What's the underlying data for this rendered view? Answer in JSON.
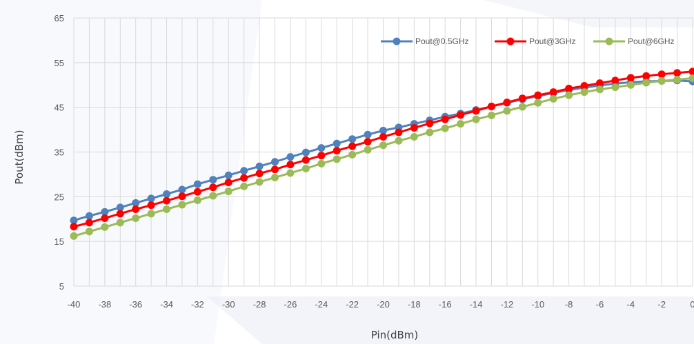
{
  "chart_data": {
    "type": "line",
    "title": "",
    "xlabel": "Pin(dBm)",
    "ylabel": "Pout(dBm)",
    "x": [
      -40,
      -39,
      -38,
      -37,
      -36,
      -35,
      -34,
      -33,
      -32,
      -31,
      -30,
      -29,
      -28,
      -27,
      -26,
      -25,
      -24,
      -23,
      -22,
      -21,
      -20,
      -19,
      -18,
      -17,
      -16,
      -15,
      -14,
      -13,
      -12,
      -11,
      -10,
      -9,
      -8,
      -7,
      -6,
      -5,
      -4,
      -3,
      -2,
      -1,
      0
    ],
    "x_ticks": [
      "-40",
      "-38",
      "-36",
      "-34",
      "-32",
      "-30",
      "-28",
      "-26",
      "-24",
      "-22",
      "-20",
      "-18",
      "-16",
      "-14",
      "-12",
      "-10",
      "-8",
      "-6",
      "-4",
      "-2",
      "0"
    ],
    "y_ticks": [
      "5",
      "15",
      "25",
      "35",
      "45",
      "55",
      "65"
    ],
    "xlim": [
      -40,
      0
    ],
    "ylim": [
      5,
      65
    ],
    "grid": true,
    "legend_position": "top-right",
    "series": [
      {
        "name": "Pout@0.5GHz",
        "color": "#4f81bd",
        "values": [
          19.7,
          20.7,
          21.6,
          22.6,
          23.6,
          24.6,
          25.6,
          26.6,
          27.8,
          28.8,
          29.8,
          30.8,
          31.8,
          32.8,
          33.9,
          34.9,
          35.9,
          36.9,
          37.9,
          38.9,
          39.8,
          40.5,
          41.3,
          42.1,
          42.9,
          43.6,
          44.4,
          45.2,
          46,
          46.8,
          47.5,
          48.2,
          48.9,
          49.4,
          49.9,
          50.3,
          50.6,
          50.8,
          50.9,
          51,
          50.8
        ]
      },
      {
        "name": "Pout@3GHz",
        "color": "#ff0000",
        "values": [
          18.3,
          19.2,
          20.2,
          21.2,
          22.2,
          23.1,
          24.1,
          25.1,
          26.1,
          27.1,
          28.2,
          29.2,
          30.2,
          31.1,
          32.2,
          33.2,
          34.2,
          35.3,
          36.3,
          37.3,
          38.4,
          39.4,
          40.4,
          41.4,
          42.3,
          43.3,
          44.2,
          45.2,
          46.1,
          47,
          47.7,
          48.4,
          49.2,
          49.8,
          50.4,
          51,
          51.6,
          52,
          52.4,
          52.7,
          53
        ]
      },
      {
        "name": "Pout@6GHz",
        "color": "#9bbb59",
        "values": [
          16.2,
          17.2,
          18.2,
          19.2,
          20.2,
          21.2,
          22.2,
          23.2,
          24.2,
          25.2,
          26.2,
          27.3,
          28.3,
          29.3,
          30.3,
          31.3,
          32.4,
          33.4,
          34.4,
          35.5,
          36.5,
          37.5,
          38.4,
          39.4,
          40.3,
          41.3,
          42.3,
          43.2,
          44.2,
          45.1,
          46,
          46.9,
          47.7,
          48.4,
          49,
          49.5,
          50,
          50.5,
          50.9,
          51.2,
          51.5
        ]
      }
    ]
  }
}
